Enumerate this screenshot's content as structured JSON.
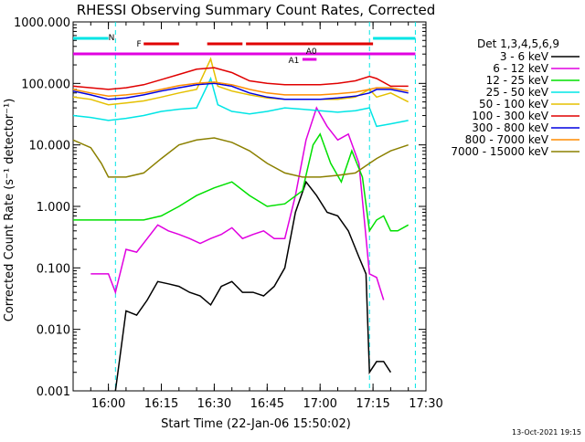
{
  "chart_data": {
    "type": "line",
    "title": "RHESSI Observing Summary Count Rates, Corrected",
    "ylabel": "Corrected Count Rate (s⁻¹ detector⁻¹)",
    "xlabel": "Start Time (22-Jan-06 15:50:02)",
    "footer": "13-Oct-2021 19:15",
    "y_scale": "log",
    "ylim": [
      0.001,
      1000
    ],
    "xlim": [
      "15:50",
      "17:30"
    ],
    "x_ticks": [
      "16:00",
      "16:15",
      "16:30",
      "16:45",
      "17:00",
      "17:15",
      "17:30"
    ],
    "y_ticks": [
      "0.001",
      "0.010",
      "0.100",
      "1.000",
      "10.000",
      "100.000",
      "1000.000"
    ],
    "legend_title": "Det 1,3,4,5,6,9",
    "legend_position": "right",
    "colors": {
      "night": "#00e5e5",
      "flare": "#e00000",
      "attenuator": "#e000e0",
      "saa": "#e000e0"
    },
    "annotations": {
      "night_label": "N",
      "flare_label": "F",
      "a0_label": "A0",
      "a1_label": "A1"
    },
    "flag_bars": [
      {
        "label": "N",
        "color": "#00e5e5",
        "start": "15:50",
        "end": "16:00"
      },
      {
        "label": "N",
        "color": "#00e5e5",
        "start": "17:15",
        "end": "17:27"
      },
      {
        "label": "F",
        "color": "#e00000",
        "start": "16:10",
        "end": "16:20"
      },
      {
        "label": "F",
        "color": "#e00000",
        "start": "16:28",
        "end": "16:38"
      },
      {
        "label": "F",
        "color": "#e00000",
        "start": "16:39",
        "end": "17:15"
      },
      {
        "label": "SAA",
        "color": "#e000e0",
        "start": "15:50",
        "end": "17:27"
      },
      {
        "label": "A1",
        "color": "#e000e0",
        "start": "16:55",
        "end": "16:59"
      }
    ],
    "vertical_lines": [
      "16:02",
      "17:14",
      "17:27"
    ],
    "series": [
      {
        "name": "3 - 6 keV",
        "color": "#000000",
        "x": [
          "16:02",
          "16:05",
          "16:08",
          "16:11",
          "16:14",
          "16:17",
          "16:20",
          "16:23",
          "16:26",
          "16:29",
          "16:32",
          "16:35",
          "16:38",
          "16:41",
          "16:44",
          "16:47",
          "16:50",
          "16:53",
          "16:56",
          "16:59",
          "17:02",
          "17:05",
          "17:08",
          "17:11",
          "17:13",
          "17:14",
          "17:16",
          "17:18",
          "17:20"
        ],
        "values": [
          0.001,
          0.02,
          0.017,
          0.03,
          0.06,
          0.055,
          0.05,
          0.04,
          0.035,
          0.025,
          0.05,
          0.06,
          0.04,
          0.04,
          0.035,
          0.05,
          0.1,
          0.8,
          2.5,
          1.5,
          0.8,
          0.7,
          0.4,
          0.15,
          0.08,
          0.002,
          0.003,
          0.003,
          0.002
        ]
      },
      {
        "name": "6 - 12 keV",
        "color": "#e000e0",
        "x": [
          "15:55",
          "15:58",
          "16:00",
          "16:02",
          "16:05",
          "16:08",
          "16:11",
          "16:14",
          "16:17",
          "16:20",
          "16:23",
          "16:26",
          "16:29",
          "16:32",
          "16:35",
          "16:38",
          "16:41",
          "16:44",
          "16:47",
          "16:50",
          "16:53",
          "16:56",
          "16:59",
          "17:02",
          "17:05",
          "17:08",
          "17:11",
          "17:14",
          "17:16",
          "17:18"
        ],
        "values": [
          0.08,
          0.08,
          0.08,
          0.04,
          0.2,
          0.18,
          0.3,
          0.5,
          0.4,
          0.35,
          0.3,
          0.25,
          0.3,
          0.35,
          0.45,
          0.3,
          0.35,
          0.4,
          0.3,
          0.3,
          1.5,
          12,
          40,
          20,
          12,
          15,
          5,
          0.08,
          0.07,
          0.03
        ]
      },
      {
        "name": "12 - 25 keV",
        "color": "#00e000",
        "x": [
          "15:50",
          "15:55",
          "16:00",
          "16:05",
          "16:10",
          "16:15",
          "16:20",
          "16:25",
          "16:30",
          "16:35",
          "16:40",
          "16:45",
          "16:50",
          "16:55",
          "16:58",
          "17:00",
          "17:03",
          "17:06",
          "17:09",
          "17:12",
          "17:14",
          "17:16",
          "17:18",
          "17:20",
          "17:22",
          "17:25"
        ],
        "values": [
          0.6,
          0.6,
          0.6,
          0.6,
          0.6,
          0.7,
          1.0,
          1.5,
          2.0,
          2.5,
          1.5,
          1.0,
          1.1,
          1.8,
          10,
          15,
          5,
          2.5,
          8,
          3,
          0.4,
          0.6,
          0.7,
          0.4,
          0.4,
          0.5
        ]
      },
      {
        "name": "25 - 50 keV",
        "color": "#00e5e5",
        "x": [
          "15:50",
          "15:55",
          "16:00",
          "16:05",
          "16:10",
          "16:15",
          "16:20",
          "16:25",
          "16:29",
          "16:31",
          "16:35",
          "16:40",
          "16:45",
          "16:50",
          "16:55",
          "17:00",
          "17:05",
          "17:10",
          "17:14",
          "17:16",
          "17:20",
          "17:25"
        ],
        "values": [
          30,
          28,
          25,
          27,
          30,
          35,
          38,
          40,
          120,
          45,
          35,
          32,
          35,
          40,
          38,
          36,
          34,
          36,
          40,
          20,
          22,
          25
        ]
      },
      {
        "name": "50 - 100 keV",
        "color": "#e5c000",
        "x": [
          "15:50",
          "15:55",
          "16:00",
          "16:05",
          "16:10",
          "16:15",
          "16:20",
          "16:25",
          "16:29",
          "16:31",
          "16:35",
          "16:40",
          "16:45",
          "16:50",
          "16:55",
          "17:00",
          "17:05",
          "17:10",
          "17:14",
          "17:16",
          "17:20",
          "17:25"
        ],
        "values": [
          60,
          55,
          45,
          48,
          52,
          60,
          70,
          80,
          250,
          90,
          75,
          65,
          58,
          55,
          55,
          55,
          55,
          60,
          80,
          60,
          70,
          50
        ]
      },
      {
        "name": "100 - 300 keV",
        "color": "#e00000",
        "x": [
          "15:50",
          "15:55",
          "16:00",
          "16:05",
          "16:10",
          "16:15",
          "16:20",
          "16:25",
          "16:30",
          "16:35",
          "16:40",
          "16:45",
          "16:50",
          "16:55",
          "17:00",
          "17:05",
          "17:10",
          "17:14",
          "17:16",
          "17:20",
          "17:25"
        ],
        "values": [
          90,
          85,
          80,
          85,
          95,
          115,
          140,
          170,
          180,
          150,
          110,
          100,
          95,
          95,
          95,
          100,
          110,
          130,
          120,
          90,
          90
        ]
      },
      {
        "name": "300 - 800 keV",
        "color": "#0000e0",
        "x": [
          "15:50",
          "15:55",
          "16:00",
          "16:05",
          "16:10",
          "16:15",
          "16:20",
          "16:25",
          "16:30",
          "16:35",
          "16:40",
          "16:45",
          "16:50",
          "16:55",
          "17:00",
          "17:05",
          "17:10",
          "17:14",
          "17:16",
          "17:20",
          "17:25"
        ],
        "values": [
          75,
          65,
          55,
          58,
          65,
          75,
          85,
          95,
          100,
          90,
          70,
          60,
          55,
          55,
          55,
          58,
          62,
          70,
          80,
          80,
          70
        ]
      },
      {
        "name": "800 - 7000 keV",
        "color": "#ff8c00",
        "x": [
          "15:50",
          "15:55",
          "16:00",
          "16:05",
          "16:10",
          "16:15",
          "16:20",
          "16:25",
          "16:30",
          "16:35",
          "16:40",
          "16:45",
          "16:50",
          "16:55",
          "17:00",
          "17:05",
          "17:10",
          "17:14",
          "17:16",
          "17:20",
          "17:25"
        ],
        "values": [
          80,
          70,
          62,
          65,
          70,
          80,
          92,
          100,
          105,
          95,
          80,
          70,
          65,
          65,
          65,
          68,
          72,
          80,
          85,
          85,
          75
        ]
      },
      {
        "name": "7000 - 15000 keV",
        "color": "#8b8000",
        "x": [
          "15:50",
          "15:55",
          "15:58",
          "16:00",
          "16:05",
          "16:10",
          "16:15",
          "16:20",
          "16:25",
          "16:30",
          "16:35",
          "16:40",
          "16:45",
          "16:50",
          "16:55",
          "17:00",
          "17:05",
          "17:10",
          "17:14",
          "17:16",
          "17:20",
          "17:25"
        ],
        "values": [
          12,
          9,
          5,
          3,
          3,
          3.5,
          6,
          10,
          12,
          13,
          11,
          8,
          5,
          3.5,
          3,
          3,
          3.2,
          3.5,
          5,
          6,
          8,
          10
        ]
      }
    ]
  }
}
